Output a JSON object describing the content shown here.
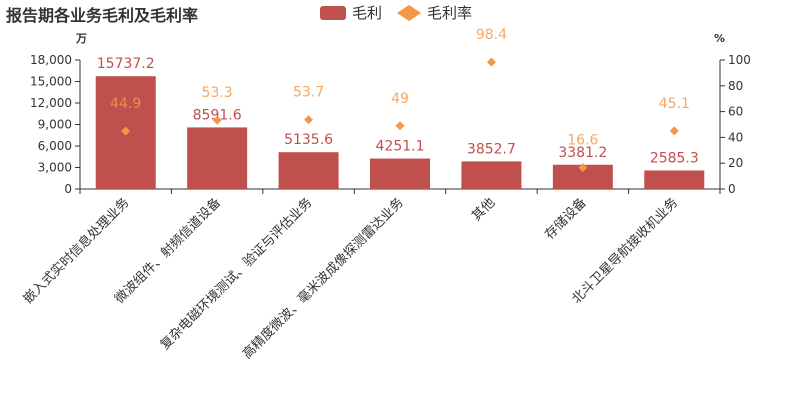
{
  "chart_data": {
    "type": "bar",
    "title": "报告期各业务毛利及毛利率",
    "left_unit": "万",
    "right_unit": "%",
    "categories": [
      "嵌入式实时信息处理业务",
      "微波组件、射频信道设备",
      "复杂电磁环境测试、验证与评估业务",
      "高精度微波、毫米波成像探测雷达业务",
      "其他",
      "存储设备",
      "北斗卫星导航接收机业务"
    ],
    "series": [
      {
        "name": "毛利",
        "type": "bar",
        "axis": "left",
        "color": "#c0504d",
        "values": [
          15737.2,
          8591.6,
          5135.6,
          4251.1,
          3852.7,
          3381.2,
          2585.3
        ]
      },
      {
        "name": "毛利率",
        "type": "scatter",
        "axis": "right",
        "color": "#f79646",
        "values": [
          44.9,
          53.3,
          53.7,
          49,
          98.4,
          16.6,
          45.1
        ]
      }
    ],
    "bar_labels": [
      "15737.2",
      "8591.6",
      "5135.6",
      "4251.1",
      "3852.7",
      "3381.2",
      "2585.3"
    ],
    "point_labels": [
      "44.9",
      "53.3",
      "53.7",
      "49",
      "98.4",
      "16.6",
      "45.1"
    ],
    "ylim_left": [
      0,
      18000
    ],
    "yticks_left": [
      0,
      3000,
      6000,
      9000,
      12000,
      15000,
      18000
    ],
    "ytick_labels_left": [
      "0",
      "3,000",
      "6,000",
      "9,000",
      "12,000",
      "15,000",
      "18,000"
    ],
    "ylim_right": [
      0,
      100
    ],
    "yticks_right": [
      0,
      20,
      40,
      60,
      80,
      100
    ],
    "ytick_labels_right": [
      "0",
      "20",
      "40",
      "60",
      "80",
      "100"
    ],
    "grid": false,
    "legend_position": "top-center"
  }
}
